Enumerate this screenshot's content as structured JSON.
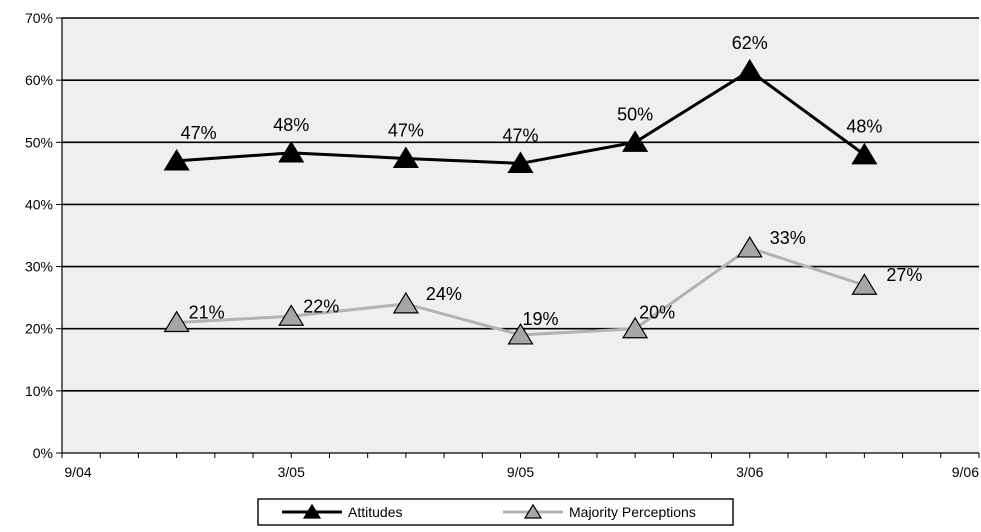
{
  "chart_data": {
    "type": "line",
    "x_ticks": [
      "9/04",
      "3/05",
      "9/05",
      "3/06",
      "9/06"
    ],
    "y_ticks": [
      "0%",
      "10%",
      "20%",
      "30%",
      "40%",
      "50%",
      "60%",
      "70%"
    ],
    "ylim": [
      0,
      70
    ],
    "grid": true,
    "legend_position": "bottom",
    "series": [
      {
        "name": "Attitudes",
        "color": "#000000",
        "marker_fill": "#000000",
        "x": [
          0.5,
          1.0,
          1.5,
          2.0,
          2.5,
          3.0,
          3.5
        ],
        "values": [
          47,
          48.3,
          47.4,
          46.6,
          50,
          61.5,
          48
        ],
        "labels": [
          "47%",
          "48%",
          "47%",
          "47%",
          "50%",
          "62%",
          "48%"
        ]
      },
      {
        "name": "Majority Perceptions",
        "color": "#b3b3b3",
        "marker_fill": "#a6a6a6",
        "x": [
          0.5,
          1.0,
          1.5,
          2.0,
          2.5,
          3.0,
          3.5
        ],
        "values": [
          21,
          22,
          24,
          19,
          20,
          33,
          27
        ],
        "labels": [
          "21%",
          "22%",
          "24%",
          "19%",
          "20%",
          "33%",
          "27%"
        ]
      }
    ]
  }
}
